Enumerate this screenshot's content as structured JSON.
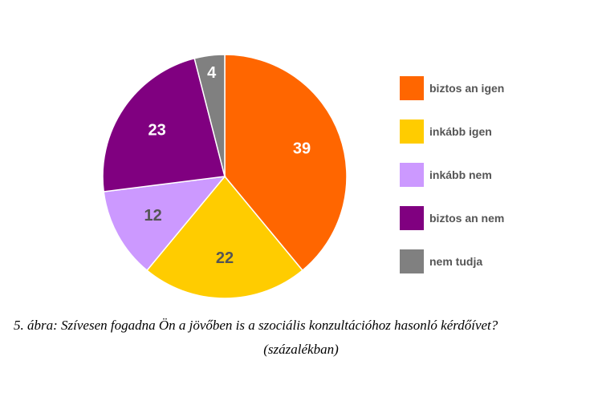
{
  "chart_data": {
    "type": "pie",
    "slices": [
      {
        "label": "biztos an igen",
        "value": 39,
        "value_label": "39",
        "color": "#ff6600",
        "label_color": "#ffffff"
      },
      {
        "label": "inkább igen",
        "value": 22,
        "value_label": "22",
        "color": "#ffcc00",
        "label_color": "#555555"
      },
      {
        "label": "inkább nem",
        "value": 12,
        "value_label": "12",
        "color": "#cc99ff",
        "label_color": "#555555"
      },
      {
        "label": "biztos an nem",
        "value": 23,
        "value_label": "23",
        "color": "#800080",
        "label_color": "#ffffff"
      },
      {
        "label": "nem tudja",
        "value": 4,
        "value_label": "4",
        "color": "#808080",
        "label_color": "#ffffff"
      }
    ],
    "start": "12 o'clock",
    "direction": "clockwise",
    "legend_placement": "right"
  },
  "caption": {
    "line1": "5. ábra: Szívesen fogadna Ön a jövőben is a szociális konzultációhoz hasonló kérdőívet?",
    "line2": "(százalékban)"
  }
}
